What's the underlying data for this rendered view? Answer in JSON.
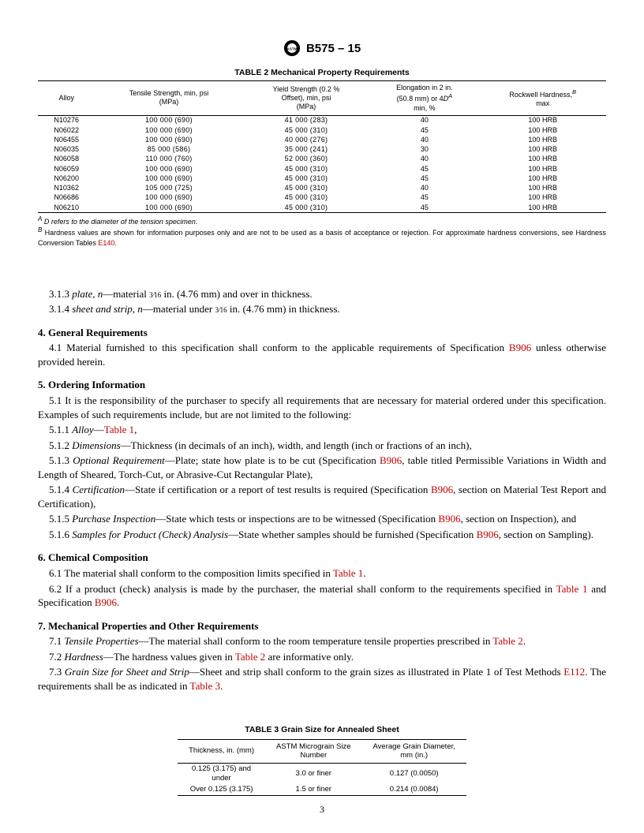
{
  "header": {
    "doc_id": "B575 – 15"
  },
  "table2": {
    "title": "TABLE 2 Mechanical Property Requirements",
    "columns": [
      "Alloy",
      "Tensile Strength, min, psi\n(MPa)",
      "Yield Strength (0.2 %\nOffset), min, psi\n(MPa)",
      "Elongation in 2 in.\n(50.8 mm) or 4D^A\nmin, %",
      "Rockwell Hardness,^B\nmax"
    ],
    "rows": [
      [
        "N10276",
        "100 000 (690)",
        "41 000 (283)",
        "40",
        "100 HRB"
      ],
      [
        "N06022",
        "100 000 (690)",
        "45 000 (310)",
        "45",
        "100 HRB"
      ],
      [
        "N06455",
        "100 000 (690)",
        "40 000 (276)",
        "40",
        "100 HRB"
      ],
      [
        "N06035",
        "85 000 (586)",
        "35 000 (241)",
        "30",
        "100 HRB"
      ],
      [
        "N06058",
        "110 000 (760)",
        "52 000 (360)",
        "40",
        "100 HRB"
      ],
      [
        "N06059",
        "100 000 (690)",
        "45 000 (310)",
        "45",
        "100 HRB"
      ],
      [
        "N06200",
        "100 000 (690)",
        "45 000 (310)",
        "45",
        "100 HRB"
      ],
      [
        "N10362",
        "105 000 (725)",
        "45 000 (310)",
        "40",
        "100 HRB"
      ],
      [
        "N06686",
        "100 000 (690)",
        "45 000 (310)",
        "45",
        "100 HRB"
      ],
      [
        "N06210",
        "100 000 (690)",
        "45 000 (310)",
        "45",
        "100 HRB"
      ]
    ],
    "footnotes": {
      "A": " D refers to the diameter of the tension specimen.",
      "B": " Hardness values are shown for information purposes only and are not to be used as a basis of acceptance or rejection. For approximate hardness conversions, see Hardness Conversion Tables ",
      "B_link": "E140",
      "B_suffix": "."
    }
  },
  "body": {
    "p313a": "3.1.3 ",
    "p313i": "plate, n",
    "p313b": "—material ",
    "p313c": " in. (4.76 mm) and over in thickness.",
    "p314a": "3.1.4 ",
    "p314i": "sheet and strip, n",
    "p314b": "—material under ",
    "p314c": " in. (4.76 mm) in thickness.",
    "s4_head": "4. General Requirements",
    "s4_1a": "4.1 Material furnished to this specification shall conform to the applicable requirements of Specification ",
    "link_B906": "B906",
    "s4_1b": " unless otherwise provided herein.",
    "s5_head": "5. Ordering Information",
    "s5_1": "5.1 It is the responsibility of the purchaser to specify all requirements that are necessary for material ordered under this specification. Examples of such requirements include, but are not limited to the following:",
    "s511a": "5.1.1 ",
    "s511i": "Alloy",
    "s511b": "—",
    "link_Table1": "Table 1",
    "comma": ",",
    "s512a": "5.1.2 ",
    "s512i": "Dimensions",
    "s512b": "—Thickness (in decimals of an inch), width, and length (inch or fractions of an inch),",
    "s513a": "5.1.3 ",
    "s513i": "Optional Requirement",
    "s513b": "—Plate; state how plate is to be cut (Specification ",
    "s513c": ", table titled Permissible Variations in Width and Length of Sheared, Torch-Cut, or Abrasive-Cut Rectangular Plate),",
    "s514a": "5.1.4 ",
    "s514i": "Certification",
    "s514b": "—State if certification or a report of test results is required (Specification ",
    "s514c": ", section on Material Test Report and Certification),",
    "s515a": "5.1.5 ",
    "s515i": "Purchase Inspection",
    "s515b": "—State which tests or inspections are to be witnessed (Specification ",
    "s515c": ", section on Inspection), and",
    "s516a": "5.1.6 ",
    "s516i": "Samples for Product (Check) Analysis",
    "s516b": "—State whether samples should be furnished (Specification ",
    "s516c": ", section on Sampling).",
    "s6_head": "6. Chemical Composition",
    "s6_1a": "6.1 The material shall conform to the composition limits specified in ",
    "period": ".",
    "s6_2a": "6.2 If a product (check) analysis is made by the purchaser, the material shall conform to the requirements specified in ",
    "s6_2b": " and Specification ",
    "s7_head": "7. Mechanical Properties and Other Requirements",
    "s7_1a": "7.1 ",
    "s7_1i": "Tensile Properties",
    "s7_1b": "—The material shall conform to the room temperature tensile properties prescribed in ",
    "link_Table2": "Table 2",
    "s7_2a": "7.2 ",
    "s7_2i": "Hardness",
    "s7_2b": "—The hardness values given in ",
    "s7_2c": " are informative only.",
    "s7_3a": "7.3 ",
    "s7_3i": "Grain Size for Sheet and Strip",
    "s7_3b": "—Sheet and strip shall conform to the grain sizes as illustrated in Plate 1 of Test Methods ",
    "link_E112": "E112",
    "s7_3c": ". The requirements shall be as indicated in ",
    "link_Table3": "Table 3"
  },
  "table3": {
    "title": "TABLE 3 Grain Size for Annealed Sheet",
    "columns": [
      "Thickness, in. (mm)",
      "ASTM Micrograin Size\nNumber",
      "Average Grain Diameter,\nmm (in.)"
    ],
    "rows": [
      [
        "0.125 (3.175) and\nunder",
        "3.0 or finer",
        "0.127 (0.0050)"
      ],
      [
        "Over 0.125 (3.175)",
        "1.5 or finer",
        "0.214 (0.0084)"
      ]
    ]
  },
  "page_number": "3",
  "fraction": {
    "num": "3",
    "den": "16"
  }
}
